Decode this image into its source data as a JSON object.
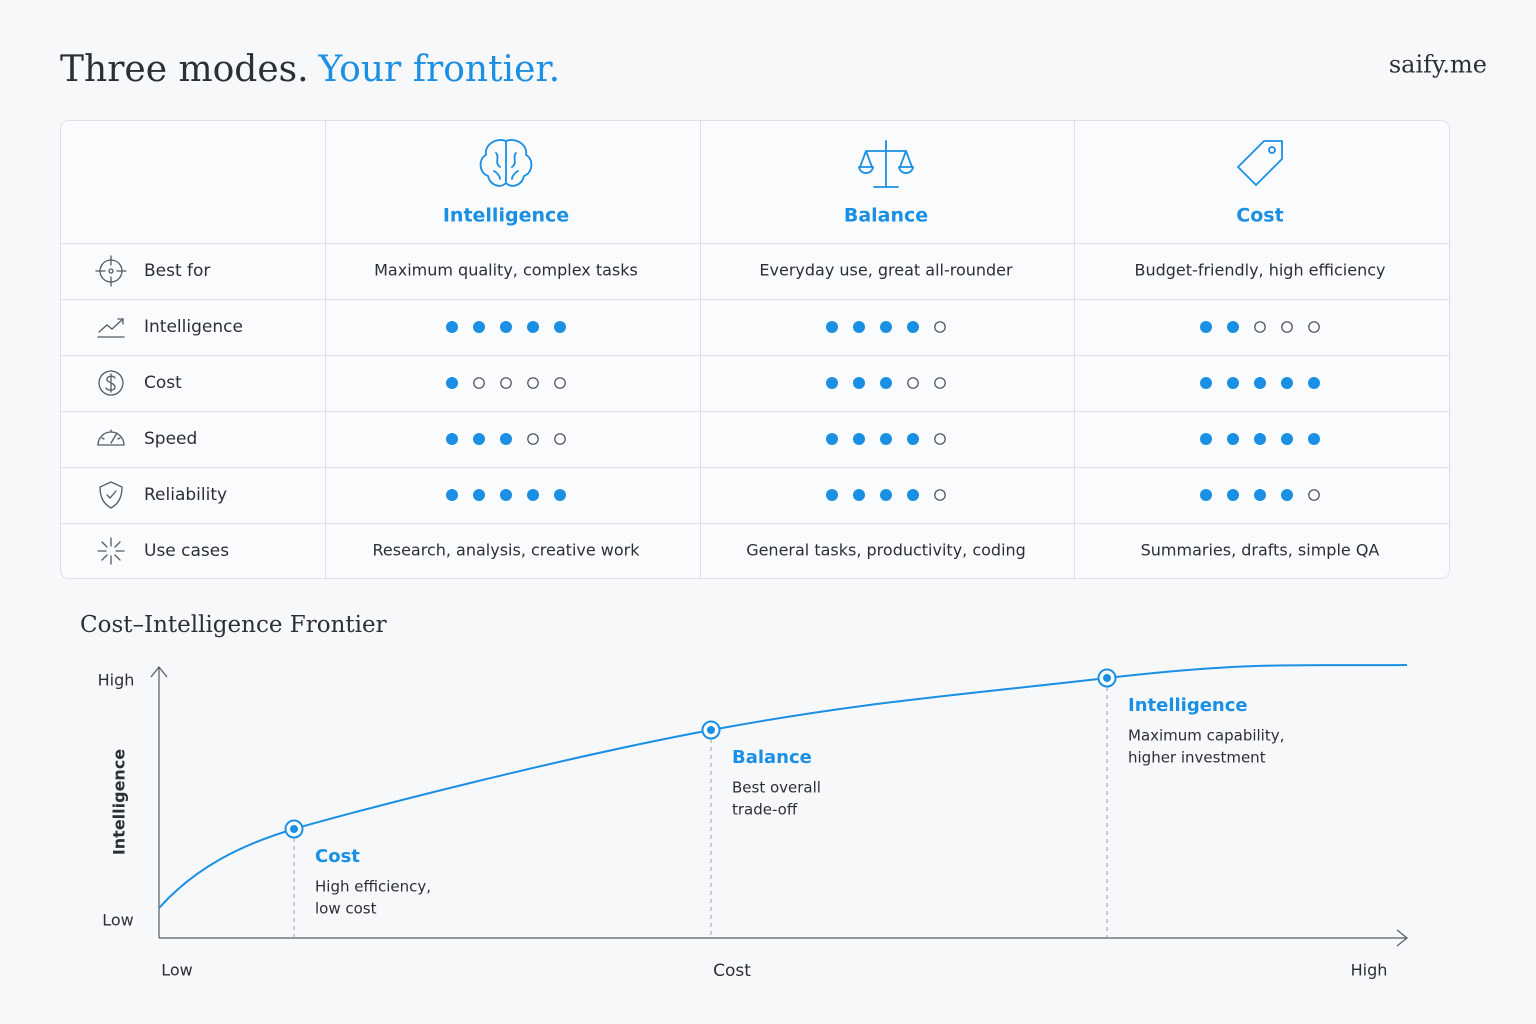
{
  "header": {
    "title_main": "Three modes.",
    "title_accent": "Your frontier.",
    "brand": "saify.me"
  },
  "table": {
    "columns": [
      "Intelligence",
      "Balance",
      "Cost"
    ],
    "rating_max": 5,
    "rows": [
      {
        "label": "Best for",
        "cells": [
          "Maximum quality, complex tasks",
          "Everyday use, great all-rounder",
          "Budget-friendly, high efficiency"
        ]
      },
      {
        "label": "Intelligence",
        "ratings": [
          5,
          4,
          2
        ]
      },
      {
        "label": "Cost",
        "ratings": [
          1,
          3,
          5
        ]
      },
      {
        "label": "Speed",
        "ratings": [
          3,
          4,
          5
        ]
      },
      {
        "label": "Reliability",
        "ratings": [
          5,
          4,
          4
        ]
      },
      {
        "label": "Use cases",
        "cells": [
          "Research, analysis, creative work",
          "General tasks, productivity, coding",
          "Summaries, drafts, simple QA"
        ]
      }
    ]
  },
  "frontier": {
    "title": "Cost–Intelligence Frontier",
    "y_axis": {
      "label": "Intelligence",
      "high": "High",
      "low": "Low"
    },
    "x_axis": {
      "label": "Cost",
      "low": "Low",
      "high": "High"
    },
    "points": [
      {
        "name": "Cost",
        "description": [
          "High efficiency,",
          "low cost"
        ]
      },
      {
        "name": "Balance",
        "description": [
          "Best overall",
          "trade-off"
        ]
      },
      {
        "name": "Intelligence",
        "description": [
          "Maximum capability,",
          "higher investment"
        ]
      }
    ]
  }
}
